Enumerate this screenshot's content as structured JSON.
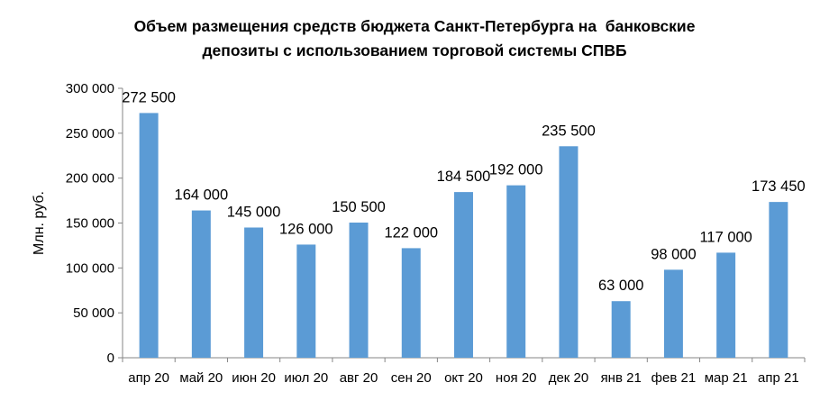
{
  "chart_data": {
    "type": "bar",
    "title_lines": [
      "Объем размещения средств бюджета Санкт-Петербурга на  банковские",
      "депозиты с использованием торговой системы СПВБ"
    ],
    "ylabel": "Млн. руб.",
    "xlabel": "",
    "categories": [
      "апр 20",
      "май 20",
      "июн 20",
      "июл 20",
      "авг 20",
      "сен 20",
      "окт 20",
      "ноя 20",
      "дек 20",
      "янв 21",
      "фев 21",
      "мар 21",
      "апр 21"
    ],
    "values": [
      272500,
      164000,
      145000,
      126000,
      150500,
      122000,
      184500,
      192000,
      235500,
      63000,
      98000,
      117000,
      173450
    ],
    "data_labels": [
      "272 500",
      "164 000",
      "145 000",
      "126 000",
      "150 500",
      "122 000",
      "184 500",
      "192 000",
      "235 500",
      "63 000",
      "98 000",
      "117 000",
      "173 450"
    ],
    "yticks": [
      0,
      50000,
      100000,
      150000,
      200000,
      250000,
      300000
    ],
    "ytick_labels": [
      "0",
      "50 000",
      "100 000",
      "150 000",
      "200 000",
      "250 000",
      "300 000"
    ],
    "ylim": [
      0,
      300000
    ],
    "grid": false,
    "legend": "none",
    "bar_color": "#5B9BD5"
  }
}
